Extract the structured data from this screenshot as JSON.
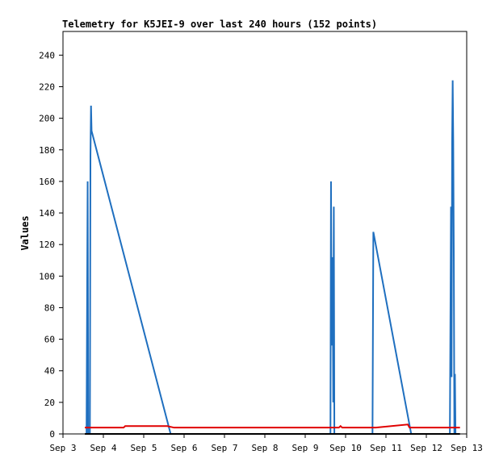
{
  "chart_data": {
    "type": "line",
    "title": "Telemetry for K5JEI-9 over last 240 hours (152 points)",
    "xlabel": "",
    "ylabel": "Values",
    "x_tick_labels": [
      "Sep 3",
      "Sep 4",
      "Sep 5",
      "Sep 6",
      "Sep 7",
      "Sep 8",
      "Sep 9",
      "Sep 10",
      "Sep 11",
      "Sep 12",
      "Sep 13"
    ],
    "y_ticks": [
      0,
      20,
      40,
      60,
      80,
      100,
      120,
      140,
      160,
      180,
      200,
      220,
      240
    ],
    "xlim": [
      "Sep 3 00:00",
      "Sep 13 00:00"
    ],
    "ylim": [
      0,
      255
    ],
    "grid": false,
    "colors": {
      "background": "#ffffff",
      "axes": "#000000"
    },
    "series": [
      {
        "color": "#1f6fbf",
        "points": [
          {
            "x": "Sep 3 14:00",
            "y": 0
          },
          {
            "x": "Sep 3 14:20",
            "y": 80
          },
          {
            "x": "Sep 3 14:40",
            "y": 160
          },
          {
            "x": "Sep 3 15:00",
            "y": 0
          },
          {
            "x": "Sep 3 16:00",
            "y": 0
          },
          {
            "x": "Sep 3 16:20",
            "y": 176
          },
          {
            "x": "Sep 3 16:40",
            "y": 208
          },
          {
            "x": "Sep 3 17:00",
            "y": 192
          },
          {
            "x": "Sep 5 16:00",
            "y": 0
          },
          {
            "x": "Sep 9 15:00",
            "y": 0
          },
          {
            "x": "Sep 9 15:20",
            "y": 160
          },
          {
            "x": "Sep 9 15:40",
            "y": 56
          },
          {
            "x": "Sep 9 16:00",
            "y": 92
          },
          {
            "x": "Sep 9 16:20",
            "y": 112
          },
          {
            "x": "Sep 9 16:40",
            "y": 20
          },
          {
            "x": "Sep 9 17:00",
            "y": 144
          },
          {
            "x": "Sep 9 17:20",
            "y": 0
          },
          {
            "x": "Sep 10 16:00",
            "y": 0
          },
          {
            "x": "Sep 10 16:30",
            "y": 128
          },
          {
            "x": "Sep 11 15:00",
            "y": 0
          },
          {
            "x": "Sep 12 14:00",
            "y": 0
          },
          {
            "x": "Sep 12 14:20",
            "y": 72
          },
          {
            "x": "Sep 12 14:40",
            "y": 144
          },
          {
            "x": "Sep 12 15:00",
            "y": 36
          },
          {
            "x": "Sep 12 15:20",
            "y": 184
          },
          {
            "x": "Sep 12 15:40",
            "y": 224
          },
          {
            "x": "Sep 12 16:00",
            "y": 186
          },
          {
            "x": "Sep 12 16:20",
            "y": 112
          },
          {
            "x": "Sep 12 16:40",
            "y": 0
          },
          {
            "x": "Sep 12 17:00",
            "y": 38
          },
          {
            "x": "Sep 12 17:20",
            "y": 0
          }
        ]
      },
      {
        "color": "#e00000",
        "points": [
          {
            "x": "Sep 3 13:00",
            "y": 4
          },
          {
            "x": "Sep 4 12:00",
            "y": 4
          },
          {
            "x": "Sep 4 13:00",
            "y": 5
          },
          {
            "x": "Sep 5 14:00",
            "y": 5
          },
          {
            "x": "Sep 5 18:00",
            "y": 4
          },
          {
            "x": "Sep 9 20:00",
            "y": 4
          },
          {
            "x": "Sep 9 21:00",
            "y": 5
          },
          {
            "x": "Sep 9 22:00",
            "y": 4
          },
          {
            "x": "Sep 10 18:00",
            "y": 4
          },
          {
            "x": "Sep 11 13:00",
            "y": 6
          },
          {
            "x": "Sep 11 14:00",
            "y": 4
          },
          {
            "x": "Sep 12 20:00",
            "y": 4
          }
        ]
      },
      {
        "color": "#000000",
        "points": [
          {
            "x": "Sep 3 13:00",
            "y": 0
          },
          {
            "x": "Sep 12 20:00",
            "y": 0
          }
        ]
      }
    ]
  }
}
